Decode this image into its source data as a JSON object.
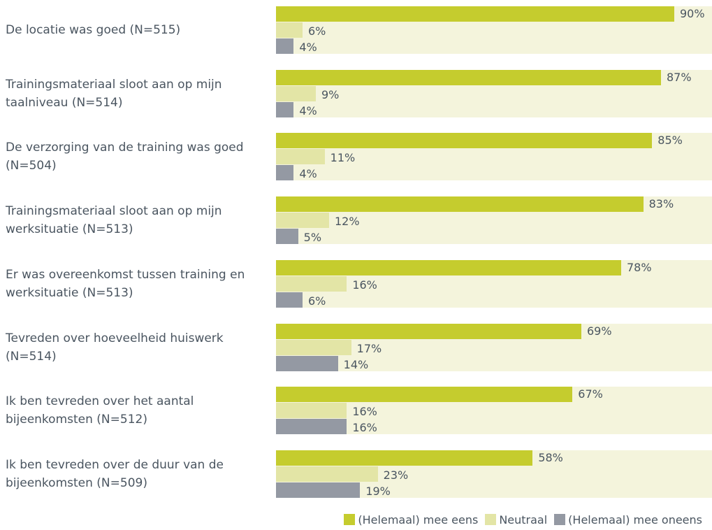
{
  "chart_data": {
    "type": "bar",
    "orientation": "horizontal",
    "categories": [
      "De locatie was goed (N=515)",
      "Trainingsmateriaal sloot aan op mijn taalniveau (N=514)",
      "De verzorging van de training was goed (N=504)",
      "Trainingsmateriaal sloot aan op mijn werksituatie (N=513)",
      "Er was overeenkomst tussen training en werksituatie (N=513)",
      "Tevreden over hoeveelheid huiswerk (N=514)",
      "Ik ben tevreden over het aantal bijeenkomsten (N=512)",
      "Ik ben tevreden over de duur van de bijeenkomsten (N=509)"
    ],
    "series": [
      {
        "name": "(Helemaal) mee eens",
        "color": "#c5cc2e",
        "values": [
          90,
          87,
          85,
          83,
          78,
          69,
          67,
          58
        ],
        "value_labels": [
          "90%",
          "87%",
          "85%",
          "83%",
          "78%",
          "69%",
          "67%",
          "58%"
        ]
      },
      {
        "name": "Neutraal",
        "color": "#e3e5a6",
        "values": [
          6,
          9,
          11,
          12,
          16,
          17,
          16,
          23
        ],
        "value_labels": [
          "6%",
          "9%",
          "11%",
          "12%",
          "16%",
          "17%",
          "16%",
          "23%"
        ]
      },
      {
        "name": "(Helemaal) mee oneens",
        "color": "#9499a3",
        "values": [
          4,
          4,
          4,
          5,
          6,
          14,
          16,
          19
        ],
        "value_labels": [
          "4%",
          "4%",
          "4%",
          "5%",
          "6%",
          "14%",
          "16%",
          "19%"
        ]
      }
    ],
    "legend": "bottom"
  }
}
